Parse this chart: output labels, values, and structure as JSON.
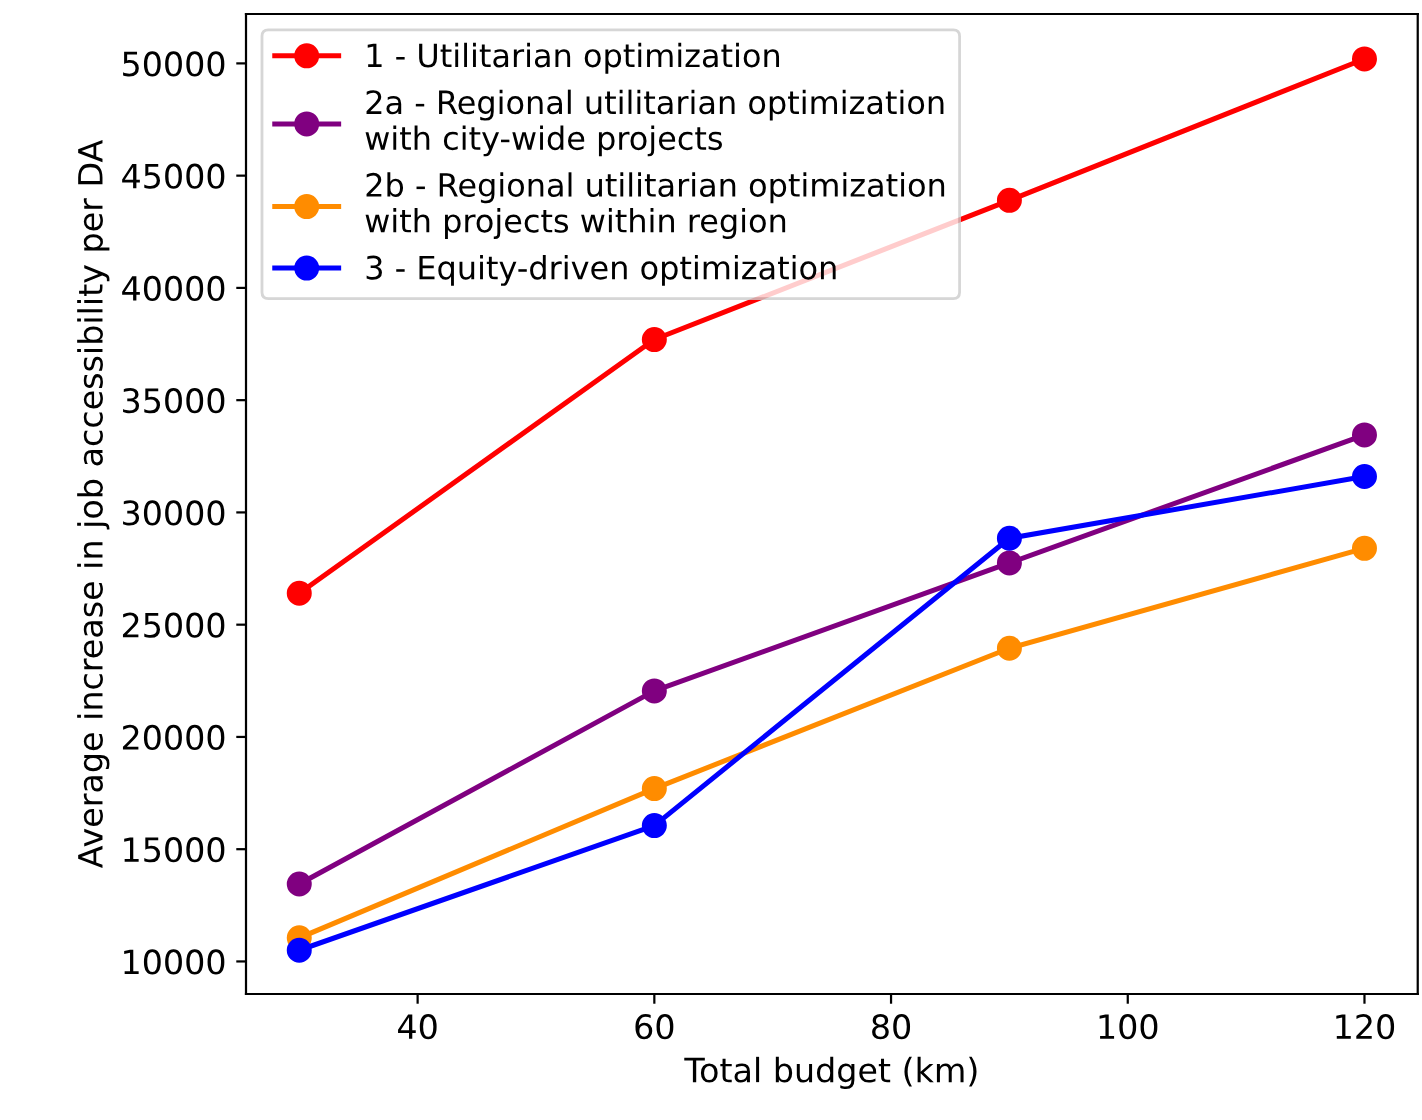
{
  "chart_data": {
    "type": "line",
    "xlabel": "Total budget (km)",
    "ylabel": "Average increase in job accessibility per DA",
    "x": [
      30,
      60,
      90,
      120
    ],
    "series": [
      {
        "name": "1 - Utilitarian optimization",
        "color": "#ff0000",
        "values": [
          26400,
          37700,
          43900,
          50200
        ]
      },
      {
        "name": "2a - Regional utilitarian optimization\nwith city-wide projects",
        "color": "#800080",
        "values": [
          13450,
          22050,
          27750,
          33450
        ]
      },
      {
        "name": "2b - Regional utilitarian optimization\nwith projects within region",
        "color": "#ff8c00",
        "values": [
          11050,
          17700,
          23950,
          28400
        ]
      },
      {
        "name": "3 - Equity-driven optimization",
        "color": "#0000ff",
        "values": [
          10500,
          16050,
          28850,
          31600
        ]
      }
    ],
    "xlim": [
      25.5,
      124.5
    ],
    "ylim": [
      8550,
      52200
    ],
    "xticks": [
      40,
      60,
      80,
      100,
      120
    ],
    "yticks": [
      10000,
      15000,
      20000,
      25000,
      30000,
      35000,
      40000,
      45000,
      50000
    ],
    "marker": "circle",
    "line_style": "solid",
    "legend": "top left",
    "grid": false
  }
}
